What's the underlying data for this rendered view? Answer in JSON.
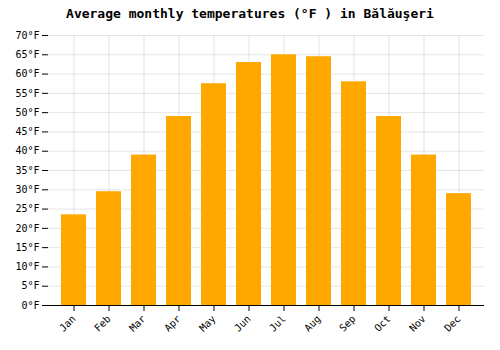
{
  "chart_data": {
    "type": "bar",
    "title": "Average monthly temperatures (°F ) in Bălăuşeri",
    "categories": [
      "Jan",
      "Feb",
      "Mar",
      "Apr",
      "May",
      "Jun",
      "Jul",
      "Aug",
      "Sep",
      "Oct",
      "Nov",
      "Dec"
    ],
    "values": [
      23.5,
      29.5,
      39.0,
      49.0,
      57.5,
      63.0,
      65.0,
      64.5,
      58.0,
      49.0,
      39.0,
      29.0
    ],
    "color": "#FFA800",
    "ylim": [
      0,
      70
    ],
    "yticks": [
      {
        "value": 0,
        "label": "0°F"
      },
      {
        "value": 5,
        "label": "5°F"
      },
      {
        "value": 10,
        "label": "10°F"
      },
      {
        "value": 15,
        "label": "15°F"
      },
      {
        "value": 20,
        "label": "20°F"
      },
      {
        "value": 25,
        "label": "25°F"
      },
      {
        "value": 30,
        "label": "30°F"
      },
      {
        "value": 35,
        "label": "35°F"
      },
      {
        "value": 40,
        "label": "40°F"
      },
      {
        "value": 45,
        "label": "45°F"
      },
      {
        "value": 50,
        "label": "50°F"
      },
      {
        "value": 55,
        "label": "55°F"
      },
      {
        "value": 60,
        "label": "60°F"
      },
      {
        "value": 65,
        "label": "65°F"
      },
      {
        "value": 70,
        "label": "70°F"
      }
    ],
    "grid": true
  }
}
